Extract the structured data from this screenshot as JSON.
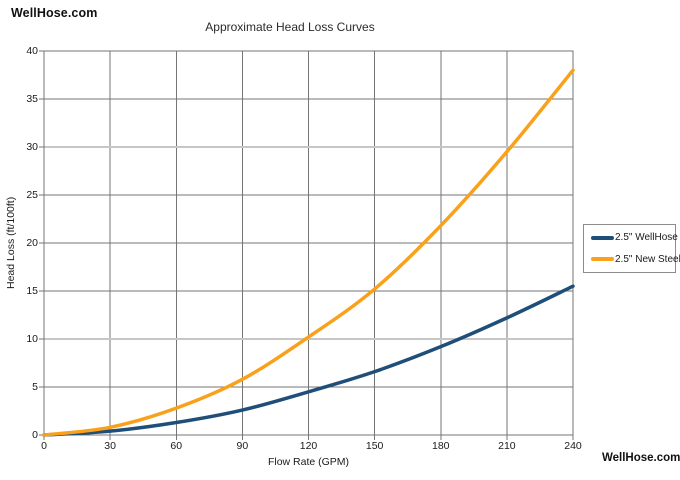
{
  "page": {
    "logo_top": "WellHose.com",
    "logo_bottom": "WellHose.com"
  },
  "chart_data": {
    "type": "line",
    "title": "Approximate Head Loss Curves",
    "xlabel": "Flow Rate (GPM)",
    "ylabel": "Head Loss (ft/100ft)",
    "xlim": [
      0,
      240
    ],
    "ylim": [
      0,
      40
    ],
    "x_ticks": [
      0,
      30,
      60,
      90,
      120,
      150,
      180,
      210,
      240
    ],
    "y_ticks": [
      0,
      5,
      10,
      15,
      20,
      25,
      30,
      35,
      40
    ],
    "grid": true,
    "legend_position": "right",
    "x": [
      0,
      30,
      60,
      90,
      120,
      150,
      180,
      210,
      240
    ],
    "series": [
      {
        "name": "2.5\" WellHose",
        "color": "#1F4E79",
        "values": [
          0,
          0.4,
          1.3,
          2.6,
          4.5,
          6.6,
          9.2,
          12.2,
          15.5
        ]
      },
      {
        "name": "2.5\" New Steel",
        "color": "#F9A11B",
        "values": [
          0,
          0.8,
          2.8,
          5.8,
          10.2,
          15.2,
          21.8,
          29.5,
          38.0
        ]
      }
    ],
    "colors": {
      "grid": "#757575",
      "grid_light": "#c6c6c6",
      "border": "#757575",
      "text": "#1a1a1a"
    },
    "light_y_gridlines": [
      10,
      30
    ]
  }
}
